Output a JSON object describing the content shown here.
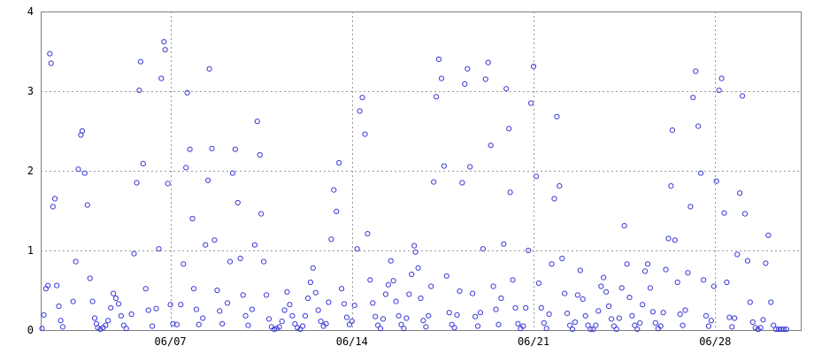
{
  "chart_data": {
    "type": "scatter",
    "title": "",
    "xlabel": "",
    "ylabel": "",
    "ylim": [
      0,
      4
    ],
    "xlim": [
      0,
      29.3
    ],
    "yticks": [
      0,
      1,
      2,
      3,
      4
    ],
    "ytick_labels": [
      "0",
      "1",
      "2",
      "3",
      "4"
    ],
    "xticks": [
      5,
      12,
      19,
      26
    ],
    "xtick_labels": [
      "06/07",
      "06/14",
      "06/21",
      "06/28"
    ],
    "grid": true,
    "colors": {
      "points": "#3a3ad8",
      "grid": "#9a9a9a",
      "frame": "#808080"
    },
    "points": [
      [
        0.05,
        0.02
      ],
      [
        0.12,
        0.19
      ],
      [
        0.2,
        0.52
      ],
      [
        0.28,
        0.56
      ],
      [
        0.35,
        3.47
      ],
      [
        0.4,
        3.35
      ],
      [
        0.47,
        1.55
      ],
      [
        0.55,
        1.65
      ],
      [
        0.62,
        0.56
      ],
      [
        0.7,
        0.3
      ],
      [
        0.77,
        0.12
      ],
      [
        0.85,
        0.04
      ],
      [
        1.25,
        0.36
      ],
      [
        1.35,
        0.86
      ],
      [
        1.45,
        2.02
      ],
      [
        1.55,
        2.45
      ],
      [
        1.6,
        2.5
      ],
      [
        1.7,
        1.97
      ],
      [
        1.8,
        1.57
      ],
      [
        1.9,
        0.65
      ],
      [
        2.0,
        0.36
      ],
      [
        2.08,
        0.15
      ],
      [
        2.15,
        0.08
      ],
      [
        2.2,
        0.03
      ],
      [
        2.3,
        0.01
      ],
      [
        2.4,
        0.03
      ],
      [
        2.5,
        0.06
      ],
      [
        2.6,
        0.12
      ],
      [
        2.7,
        0.28
      ],
      [
        2.8,
        0.46
      ],
      [
        2.9,
        0.4
      ],
      [
        3.0,
        0.33
      ],
      [
        3.1,
        0.18
      ],
      [
        3.2,
        0.06
      ],
      [
        3.3,
        0.02
      ],
      [
        3.5,
        0.2
      ],
      [
        3.6,
        0.96
      ],
      [
        3.7,
        1.85
      ],
      [
        3.8,
        3.01
      ],
      [
        3.85,
        3.37
      ],
      [
        3.95,
        2.09
      ],
      [
        4.05,
        0.52
      ],
      [
        4.15,
        0.25
      ],
      [
        4.3,
        0.05
      ],
      [
        4.45,
        0.27
      ],
      [
        4.55,
        1.02
      ],
      [
        4.65,
        3.16
      ],
      [
        4.75,
        3.62
      ],
      [
        4.8,
        3.52
      ],
      [
        4.9,
        1.84
      ],
      [
        5.0,
        0.32
      ],
      [
        5.1,
        0.08
      ],
      [
        5.25,
        0.07
      ],
      [
        5.4,
        0.32
      ],
      [
        5.5,
        0.83
      ],
      [
        5.6,
        2.04
      ],
      [
        5.65,
        2.98
      ],
      [
        5.75,
        2.27
      ],
      [
        5.85,
        1.4
      ],
      [
        5.9,
        0.52
      ],
      [
        6.0,
        0.26
      ],
      [
        6.1,
        0.07
      ],
      [
        6.25,
        0.15
      ],
      [
        6.35,
        1.07
      ],
      [
        6.45,
        1.88
      ],
      [
        6.5,
        3.28
      ],
      [
        6.6,
        2.28
      ],
      [
        6.7,
        1.13
      ],
      [
        6.8,
        0.5
      ],
      [
        6.9,
        0.24
      ],
      [
        7.0,
        0.08
      ],
      [
        7.2,
        0.34
      ],
      [
        7.3,
        0.86
      ],
      [
        7.4,
        1.97
      ],
      [
        7.5,
        2.27
      ],
      [
        7.6,
        1.6
      ],
      [
        7.7,
        0.9
      ],
      [
        7.8,
        0.44
      ],
      [
        7.9,
        0.18
      ],
      [
        8.0,
        0.06
      ],
      [
        8.15,
        0.26
      ],
      [
        8.25,
        1.07
      ],
      [
        8.35,
        2.62
      ],
      [
        8.45,
        2.2
      ],
      [
        8.5,
        1.46
      ],
      [
        8.6,
        0.86
      ],
      [
        8.7,
        0.44
      ],
      [
        8.8,
        0.14
      ],
      [
        8.9,
        0.04
      ],
      [
        9.0,
        0.01
      ],
      [
        9.1,
        0.02
      ],
      [
        9.2,
        0.04
      ],
      [
        9.3,
        0.11
      ],
      [
        9.4,
        0.25
      ],
      [
        9.5,
        0.48
      ],
      [
        9.6,
        0.32
      ],
      [
        9.7,
        0.18
      ],
      [
        9.8,
        0.08
      ],
      [
        9.9,
        0.03
      ],
      [
        10.0,
        0.01
      ],
      [
        10.1,
        0.05
      ],
      [
        10.2,
        0.18
      ],
      [
        10.3,
        0.4
      ],
      [
        10.4,
        0.6
      ],
      [
        10.5,
        0.78
      ],
      [
        10.6,
        0.47
      ],
      [
        10.7,
        0.25
      ],
      [
        10.8,
        0.11
      ],
      [
        10.9,
        0.05
      ],
      [
        11.0,
        0.08
      ],
      [
        11.1,
        0.35
      ],
      [
        11.2,
        1.14
      ],
      [
        11.3,
        1.76
      ],
      [
        11.4,
        1.49
      ],
      [
        11.5,
        2.1
      ],
      [
        11.6,
        0.52
      ],
      [
        11.7,
        0.33
      ],
      [
        11.8,
        0.16
      ],
      [
        11.9,
        0.07
      ],
      [
        12.0,
        0.11
      ],
      [
        12.1,
        0.31
      ],
      [
        12.2,
        1.02
      ],
      [
        12.3,
        2.75
      ],
      [
        12.4,
        2.92
      ],
      [
        12.5,
        2.46
      ],
      [
        12.6,
        1.21
      ],
      [
        12.7,
        0.63
      ],
      [
        12.8,
        0.34
      ],
      [
        12.9,
        0.17
      ],
      [
        13.0,
        0.06
      ],
      [
        13.1,
        0.02
      ],
      [
        13.2,
        0.14
      ],
      [
        13.3,
        0.45
      ],
      [
        13.4,
        0.57
      ],
      [
        13.5,
        0.87
      ],
      [
        13.6,
        0.62
      ],
      [
        13.7,
        0.36
      ],
      [
        13.8,
        0.18
      ],
      [
        13.9,
        0.07
      ],
      [
        14.0,
        0.02
      ],
      [
        14.1,
        0.15
      ],
      [
        14.2,
        0.45
      ],
      [
        14.3,
        0.7
      ],
      [
        14.4,
        1.06
      ],
      [
        14.45,
        0.98
      ],
      [
        14.55,
        0.78
      ],
      [
        14.65,
        0.4
      ],
      [
        14.75,
        0.12
      ],
      [
        14.85,
        0.04
      ],
      [
        14.95,
        0.18
      ],
      [
        15.05,
        0.55
      ],
      [
        15.15,
        1.86
      ],
      [
        15.25,
        2.93
      ],
      [
        15.35,
        3.4
      ],
      [
        15.45,
        3.16
      ],
      [
        15.55,
        2.06
      ],
      [
        15.65,
        0.68
      ],
      [
        15.75,
        0.22
      ],
      [
        15.85,
        0.07
      ],
      [
        15.95,
        0.03
      ],
      [
        16.05,
        0.19
      ],
      [
        16.15,
        0.49
      ],
      [
        16.25,
        1.85
      ],
      [
        16.35,
        3.09
      ],
      [
        16.45,
        3.28
      ],
      [
        16.55,
        2.05
      ],
      [
        16.65,
        0.46
      ],
      [
        16.75,
        0.17
      ],
      [
        16.85,
        0.05
      ],
      [
        16.95,
        0.22
      ],
      [
        17.05,
        1.02
      ],
      [
        17.15,
        3.15
      ],
      [
        17.25,
        3.36
      ],
      [
        17.35,
        2.32
      ],
      [
        17.45,
        0.55
      ],
      [
        17.55,
        0.26
      ],
      [
        17.65,
        0.07
      ],
      [
        17.75,
        0.4
      ],
      [
        17.85,
        1.08
      ],
      [
        17.95,
        3.03
      ],
      [
        18.05,
        2.53
      ],
      [
        18.1,
        1.73
      ],
      [
        18.2,
        0.63
      ],
      [
        18.3,
        0.28
      ],
      [
        18.4,
        0.08
      ],
      [
        18.5,
        0.02
      ],
      [
        18.6,
        0.05
      ],
      [
        18.7,
        0.28
      ],
      [
        18.8,
        1.0
      ],
      [
        18.9,
        2.85
      ],
      [
        19.0,
        3.31
      ],
      [
        19.1,
        1.93
      ],
      [
        19.2,
        0.59
      ],
      [
        19.3,
        0.28
      ],
      [
        19.4,
        0.09
      ],
      [
        19.5,
        0.02
      ],
      [
        19.6,
        0.2
      ],
      [
        19.7,
        0.83
      ],
      [
        19.8,
        1.65
      ],
      [
        19.9,
        2.68
      ],
      [
        20.0,
        1.81
      ],
      [
        20.1,
        0.9
      ],
      [
        20.2,
        0.46
      ],
      [
        20.3,
        0.21
      ],
      [
        20.4,
        0.06
      ],
      [
        20.5,
        0.01
      ],
      [
        20.6,
        0.1
      ],
      [
        20.7,
        0.44
      ],
      [
        20.8,
        0.75
      ],
      [
        20.9,
        0.39
      ],
      [
        21.0,
        0.18
      ],
      [
        21.1,
        0.06
      ],
      [
        21.2,
        0.01
      ],
      [
        21.3,
        0.01
      ],
      [
        21.4,
        0.06
      ],
      [
        21.5,
        0.24
      ],
      [
        21.6,
        0.55
      ],
      [
        21.7,
        0.66
      ],
      [
        21.8,
        0.48
      ],
      [
        21.9,
        0.3
      ],
      [
        22.0,
        0.14
      ],
      [
        22.1,
        0.05
      ],
      [
        22.2,
        0.01
      ],
      [
        22.3,
        0.15
      ],
      [
        22.4,
        0.53
      ],
      [
        22.5,
        1.31
      ],
      [
        22.6,
        0.83
      ],
      [
        22.7,
        0.41
      ],
      [
        22.8,
        0.18
      ],
      [
        22.9,
        0.06
      ],
      [
        23.0,
        0.01
      ],
      [
        23.1,
        0.09
      ],
      [
        23.2,
        0.32
      ],
      [
        23.3,
        0.74
      ],
      [
        23.4,
        0.83
      ],
      [
        23.5,
        0.53
      ],
      [
        23.6,
        0.23
      ],
      [
        23.7,
        0.09
      ],
      [
        23.8,
        0.02
      ],
      [
        23.9,
        0.05
      ],
      [
        24.0,
        0.22
      ],
      [
        24.1,
        0.76
      ],
      [
        24.2,
        1.15
      ],
      [
        24.3,
        1.81
      ],
      [
        24.35,
        2.51
      ],
      [
        24.45,
        1.13
      ],
      [
        24.55,
        0.6
      ],
      [
        24.65,
        0.2
      ],
      [
        24.75,
        0.06
      ],
      [
        24.85,
        0.25
      ],
      [
        24.95,
        0.72
      ],
      [
        25.05,
        1.55
      ],
      [
        25.15,
        2.92
      ],
      [
        25.25,
        3.25
      ],
      [
        25.35,
        2.56
      ],
      [
        25.45,
        1.97
      ],
      [
        25.55,
        0.63
      ],
      [
        25.65,
        0.18
      ],
      [
        25.75,
        0.05
      ],
      [
        25.85,
        0.12
      ],
      [
        25.95,
        0.55
      ],
      [
        26.05,
        1.87
      ],
      [
        26.15,
        3.01
      ],
      [
        26.25,
        3.16
      ],
      [
        26.35,
        1.47
      ],
      [
        26.45,
        0.6
      ],
      [
        26.55,
        0.16
      ],
      [
        26.65,
        0.04
      ],
      [
        26.75,
        0.15
      ],
      [
        26.85,
        0.95
      ],
      [
        26.95,
        1.72
      ],
      [
        27.05,
        2.94
      ],
      [
        27.15,
        1.46
      ],
      [
        27.25,
        0.87
      ],
      [
        27.35,
        0.35
      ],
      [
        27.45,
        0.1
      ],
      [
        27.55,
        0.03
      ],
      [
        27.65,
        0.01
      ],
      [
        27.75,
        0.03
      ],
      [
        27.85,
        0.13
      ],
      [
        27.95,
        0.84
      ],
      [
        28.05,
        1.19
      ],
      [
        28.15,
        0.35
      ],
      [
        28.25,
        0.06
      ],
      [
        28.35,
        0.01
      ],
      [
        28.45,
        0.01
      ],
      [
        28.55,
        0.01
      ],
      [
        28.65,
        0.01
      ],
      [
        28.75,
        0.01
      ]
    ]
  }
}
